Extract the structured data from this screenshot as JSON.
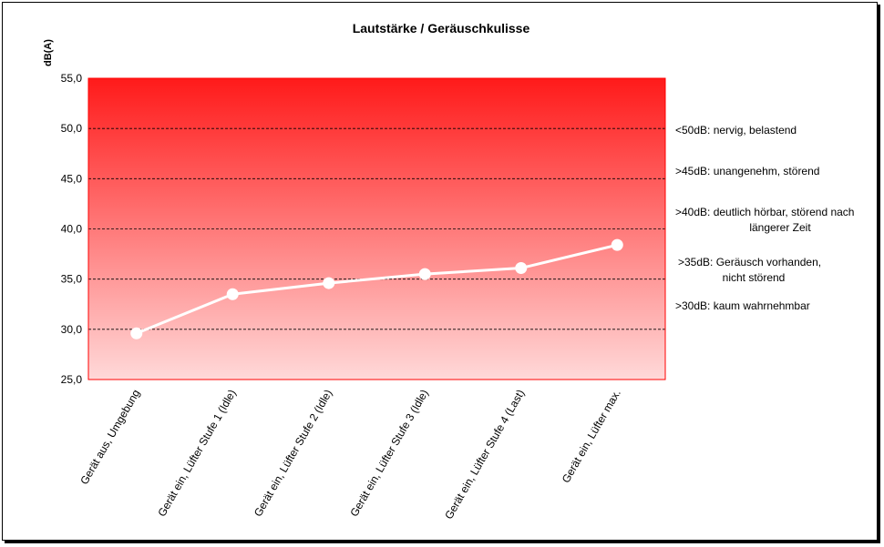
{
  "chart_data": {
    "type": "line",
    "title": "Lautstärke / Geräuschkulisse",
    "ylabel": "dB(A)",
    "xlabel": "",
    "ylim": [
      25,
      55
    ],
    "yticks": [
      "25,0",
      "30,0",
      "35,0",
      "40,0",
      "45,0",
      "50,0",
      "55,0"
    ],
    "categories": [
      "Gerät aus, Umgebung",
      "Gerät ein, Lüfter Stufe 1 (Idle)",
      "Gerät ein, Lüfter Stufe 2 (Idle)",
      "Gerät ein, Lüfter Stufe 3 (Idle)",
      "Gerät ein, Lüfter Stufe 4 (Last)",
      "Gerät ein, Lüfter max."
    ],
    "series": [
      {
        "values": [
          29.6,
          33.5,
          34.6,
          35.5,
          36.1,
          38.4
        ]
      }
    ],
    "grid": true,
    "legend": "none",
    "annotations": [
      {
        "lines": [
          "<50dB: nervig, belastend"
        ]
      },
      {
        "lines": [
          ">45dB: unangenehm, störend"
        ]
      },
      {
        "lines": [
          ">40dB: deutlich hörbar, störend nach",
          "längerer Zeit"
        ]
      },
      {
        "lines": [
          ">35dB: Geräusch vorhanden,",
          "nicht störend"
        ]
      },
      {
        "lines": [
          ">30dB: kaum wahrnehmbar"
        ]
      }
    ],
    "colors": {
      "background_top": "#ff1a1a",
      "background_bottom": "#ffd9d9",
      "line": "#ffffff",
      "grid": "#000000",
      "plot_border": "#ff0000"
    }
  }
}
